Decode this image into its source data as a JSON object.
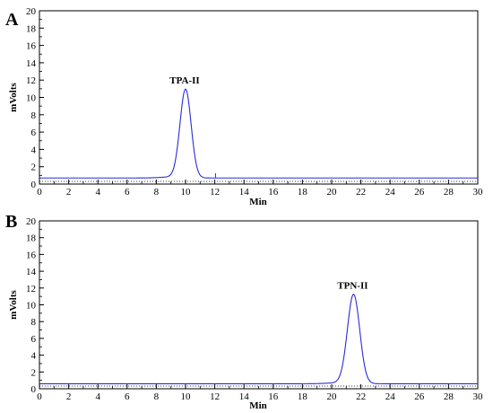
{
  "accent": "#2b2bd6",
  "chart_data": [
    {
      "type": "line",
      "panel_label": "A",
      "xlabel": "Min",
      "ylabel": "mVolts",
      "xlim": [
        0,
        30
      ],
      "ylim": [
        0,
        20
      ],
      "x_ticks": [
        0,
        2,
        4,
        6,
        8,
        10,
        12,
        14,
        16,
        18,
        20,
        22,
        24,
        26,
        28,
        30
      ],
      "y_ticks": [
        0,
        2,
        4,
        6,
        8,
        10,
        12,
        14,
        16,
        18,
        20
      ],
      "grid": false,
      "baseline": 0.7,
      "peaks": [
        {
          "label": "TPA-II",
          "x": 10.0,
          "y": 10.9
        }
      ],
      "series": [
        {
          "x": [
            0,
            7.5,
            8.3,
            8.8,
            9.2,
            9.5,
            9.7,
            9.85,
            10.0,
            10.15,
            10.3,
            10.45,
            10.6,
            10.75,
            10.9,
            11.2,
            12,
            30
          ],
          "y": [
            0.7,
            0.72,
            0.85,
            1.2,
            2.0,
            3.6,
            5.8,
            8.6,
            10.9,
            10.1,
            7.8,
            4.9,
            2.8,
            1.6,
            1.05,
            0.78,
            0.72,
            0.7
          ]
        }
      ]
    },
    {
      "type": "line",
      "panel_label": "B",
      "xlabel": "Min",
      "ylabel": "mVolts",
      "xlim": [
        0,
        30
      ],
      "ylim": [
        0,
        20
      ],
      "x_ticks": [
        0,
        2,
        4,
        6,
        8,
        10,
        12,
        14,
        16,
        18,
        20,
        22,
        24,
        26,
        28,
        30
      ],
      "y_ticks": [
        0,
        2,
        4,
        6,
        8,
        10,
        12,
        14,
        16,
        18,
        20
      ],
      "grid": false,
      "baseline": 0.6,
      "peaks": [
        {
          "label": "TPN-II",
          "x": 21.5,
          "y": 11.2
        }
      ],
      "series": [
        {
          "x": [
            0,
            9.5,
            10.5,
            19,
            20.0,
            20.4,
            20.7,
            20.95,
            21.15,
            21.35,
            21.5,
            21.65,
            21.8,
            21.95,
            22.1,
            22.3,
            22.6,
            23.0,
            30
          ],
          "y": [
            0.6,
            0.62,
            0.66,
            0.68,
            0.8,
            1.2,
            2.4,
            4.8,
            7.6,
            10.2,
            11.2,
            10.6,
            8.2,
            5.3,
            3.0,
            1.5,
            0.85,
            0.65,
            0.6
          ]
        }
      ]
    }
  ]
}
